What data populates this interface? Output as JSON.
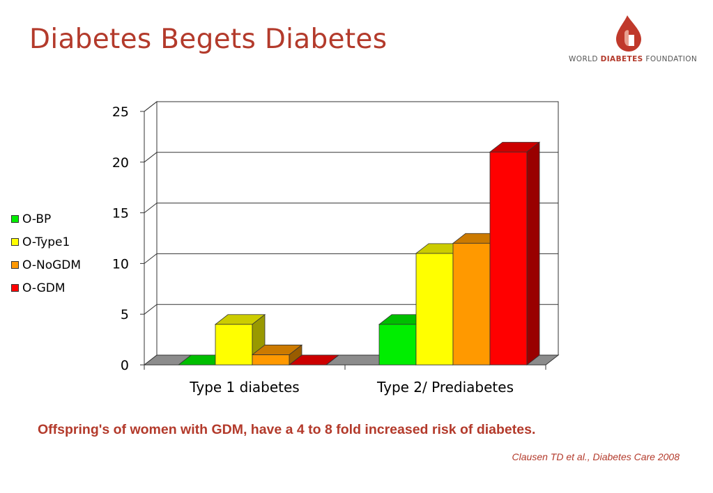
{
  "slide": {
    "title": "Diabetes Begets Diabetes",
    "caption": "Offspring's of  women with GDM, have a 4 to 8 fold increased risk of diabetes.",
    "citation": "Clausen TD et al., Diabetes Care 2008"
  },
  "logo": {
    "word1": "WORLD ",
    "word2": "DIABETES",
    "word3": " FOUNDATION",
    "colors": {
      "drop": "#c0392b",
      "inner": "#e06040"
    }
  },
  "chart_data": {
    "type": "bar",
    "categories": [
      "Type 1 diabetes",
      "Type 2/ Prediabetes"
    ],
    "series": [
      {
        "name": "O-BP",
        "values": [
          0,
          4
        ],
        "color": "#00ee00"
      },
      {
        "name": "O-Type1",
        "values": [
          4,
          11
        ],
        "color": "#ffff00"
      },
      {
        "name": "O-NoGDM",
        "values": [
          1,
          12
        ],
        "color": "#ff9900"
      },
      {
        "name": "O-GDM",
        "values": [
          0,
          21
        ],
        "color": "#ff0000"
      }
    ],
    "yticks": [
      "0",
      "5",
      "10",
      "15",
      "20",
      "25"
    ],
    "ylim": [
      0,
      25
    ],
    "grid": true,
    "legend_position": "left",
    "style": "3d"
  }
}
